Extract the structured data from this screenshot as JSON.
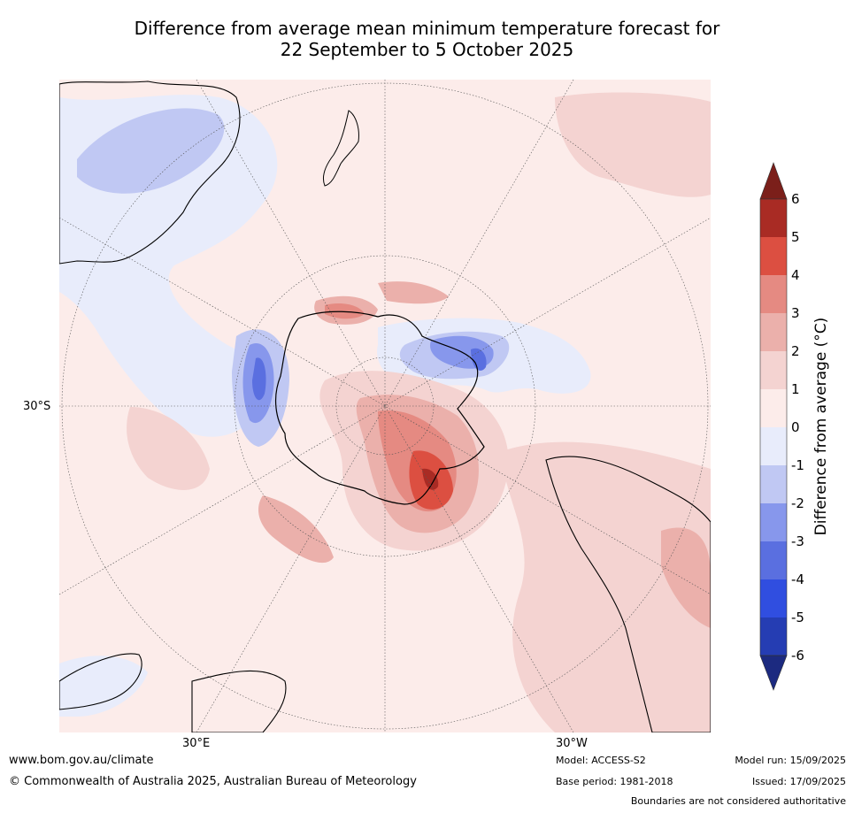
{
  "title": {
    "line1": "Difference from average mean minimum temperature forecast for",
    "line2": "22 September to 5 October 2025"
  },
  "map": {
    "graticule_labels": {
      "lat": "30°S",
      "lon_left": "30°E",
      "lon_right": "30°W"
    },
    "colors": {
      "warm_0_1": "#fcecea",
      "warm_1_2": "#f4d3d1",
      "warm_2_3": "#ebb0ab",
      "warm_3_4": "#e58a82",
      "warm_4_5": "#dc4f41",
      "warm_5_6": "#a92b24",
      "warm_over": "#7b1f1a",
      "cool_0_1": "#e8ecfb",
      "cool_1_2": "#c0c8f3",
      "cool_2_3": "#8797ec",
      "cool_3_4": "#5a6fe0",
      "cool_4_5": "#304ee0",
      "cool_5_6": "#253db3",
      "cool_under": "#1c2a80"
    }
  },
  "colorbar": {
    "title": "Difference from average (°C)",
    "ticks": [
      "6",
      "5",
      "4",
      "3",
      "2",
      "1",
      "0",
      "-1",
      "-2",
      "-3",
      "-4",
      "-5",
      "-6"
    ]
  },
  "footer": {
    "website": "www.bom.gov.au/climate",
    "copyright": "© Commonwealth of Australia 2025, Australian Bureau of Meteorology",
    "model": "Model: ACCESS-S2",
    "base_period": "Base period: 1981-2018",
    "model_run": "Model run: 15/09/2025",
    "issued": "Issued: 17/09/2025",
    "disclaimer": "Boundaries are not considered authoritative"
  }
}
